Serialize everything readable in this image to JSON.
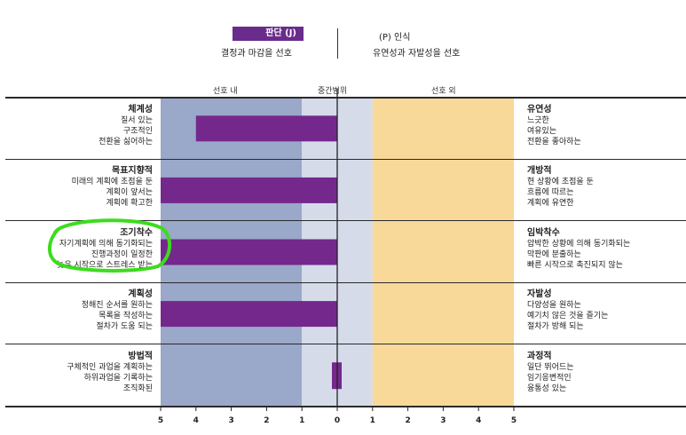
{
  "header": {
    "left_badge": "판단 (J)",
    "left_sub": "결정과 마감을 선호",
    "right_title": "(P) 인식",
    "right_sub": "유연성과 자발성을 선호"
  },
  "zones": {
    "in_pref": "선호 내",
    "mid": "중간범위",
    "out_pref": "선호 외"
  },
  "groups": [
    {
      "left_title": "체계성",
      "left_lines": [
        "질서 있는",
        "구조적인",
        "전환을 싫어하는"
      ],
      "right_title": "유연성",
      "right_lines": [
        "느긋한",
        "여유있는",
        "전환을 좋아하는"
      ]
    },
    {
      "left_title": "목표지향적",
      "left_lines": [
        "미래의 계획에 초점을 둔",
        "계획이 앞서는",
        "계획에 확고한"
      ],
      "right_title": "개방적",
      "right_lines": [
        "현 상황에 초점을 둔",
        "흐름에 따르는",
        "계획에 유연한"
      ]
    },
    {
      "left_title": "조기착수",
      "left_lines": [
        "자기계획에 의해 동기화되는",
        "진행과정이 일정한",
        "늦은 시작으로 스트레스 받는"
      ],
      "right_title": "임박착수",
      "right_lines": [
        "압박한 상황에 의해 동기화되는",
        "막판에 분출하는",
        "빠른 시작으로 촉진되지 않는"
      ]
    },
    {
      "left_title": "계획성",
      "left_lines": [
        "정해진 순서를 원하는",
        "목록을 작성하는",
        "절차가 도움 되는"
      ],
      "right_title": "자발성",
      "right_lines": [
        "다양성을 원하는",
        "예기치 않은 것을 즐기는",
        "절차가 방해 되는"
      ]
    },
    {
      "left_title": "방법적",
      "left_lines": [
        "구체적인 과업을 계획하는",
        "하위과업을 기록하는",
        "조직화된"
      ],
      "right_title": "과정적",
      "right_lines": [
        "일단 뛰어드는",
        "임기응변적인",
        "융통성 있는"
      ]
    }
  ],
  "chart_data": {
    "type": "bar",
    "orientation": "horizontal",
    "categories": [
      "체계성 / 유연성",
      "목표지향적 / 개방적",
      "조기착수 / 임박착수",
      "계획성 / 자발성",
      "방법적 / 과정적"
    ],
    "values": [
      -4,
      -5,
      -5,
      -5,
      -0.2
    ],
    "xlim": [
      -5,
      5
    ],
    "x_tick_labels": [
      "5",
      "4",
      "3",
      "2",
      "1",
      "0",
      "1",
      "2",
      "3",
      "4",
      "5"
    ],
    "bar_color": "#74288c",
    "zone_colors": {
      "in_pref": "#9aa8c9",
      "mid": "#d6dbea",
      "out_pref": "#f8d99a"
    }
  }
}
